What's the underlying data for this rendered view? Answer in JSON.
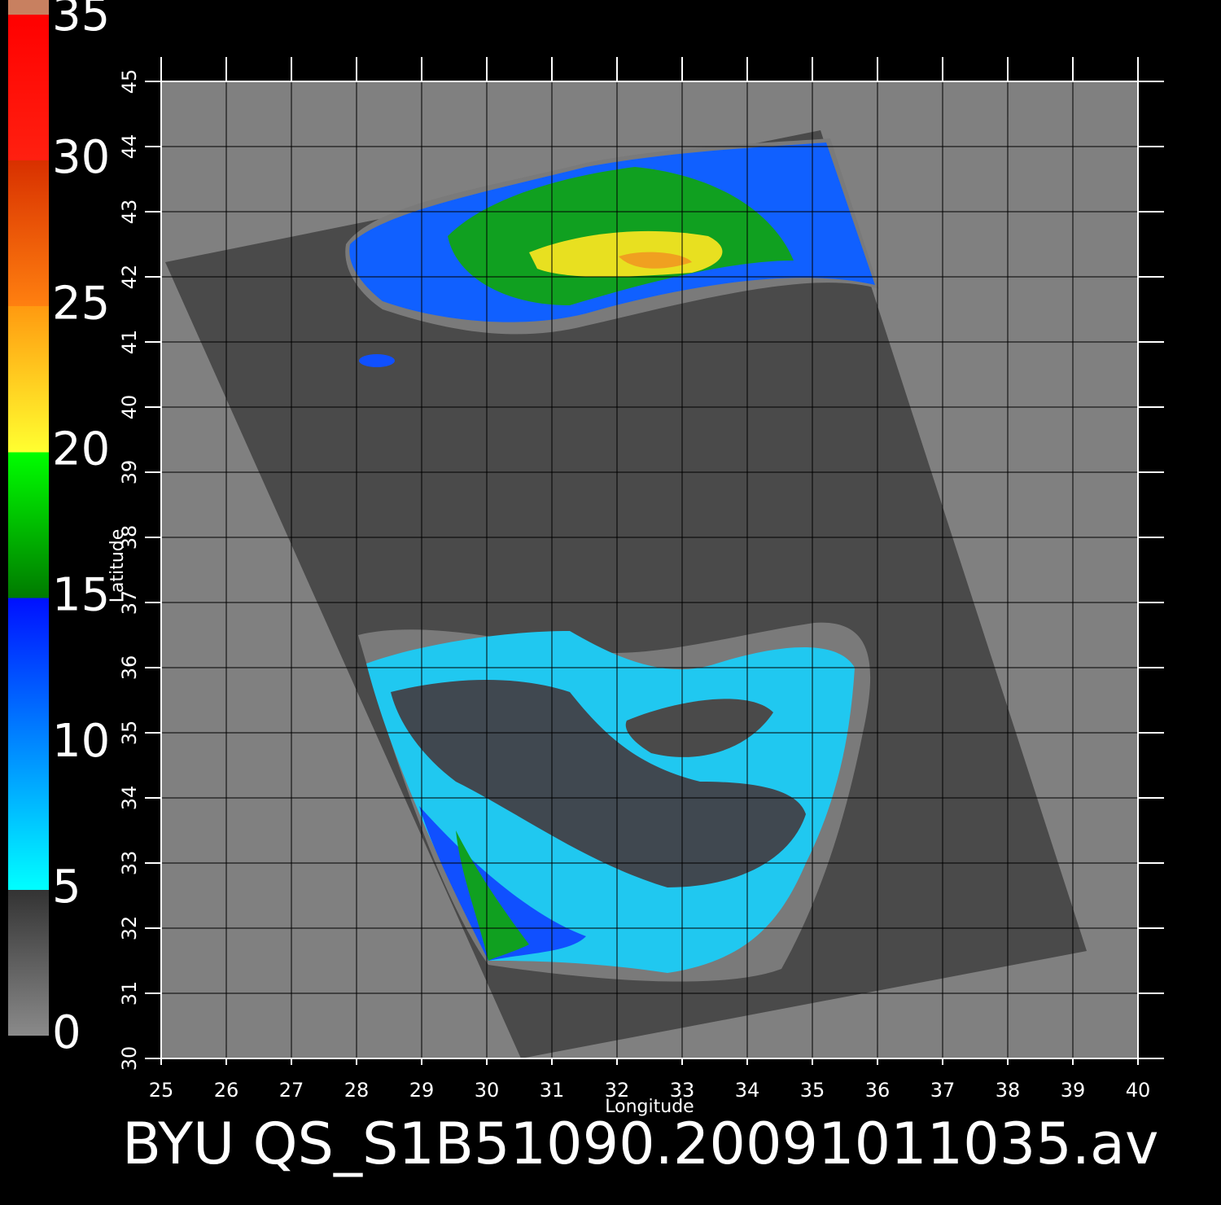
{
  "chart_data": {
    "type": "map",
    "title": "BYU QS_S1B51090.20091011035.av",
    "x_label": "Longitude",
    "y_label": "Latitude",
    "xlim": [
      25,
      40
    ],
    "xticks": [
      25,
      26,
      27,
      28,
      29,
      30,
      31,
      32,
      33,
      34,
      35,
      36,
      37,
      38,
      39,
      40
    ],
    "ylim": [
      30,
      45
    ],
    "yticks": [
      30,
      31,
      32,
      33,
      34,
      35,
      36,
      37,
      38,
      39,
      40,
      41,
      42,
      43,
      44,
      45
    ],
    "grid": true,
    "colorbar": {
      "lim": [
        0,
        35.5
      ],
      "ticks": [
        0,
        5,
        10,
        15,
        20,
        25,
        30,
        35
      ],
      "stops": [
        {
          "value": 0,
          "color": "#8a8a8a"
        },
        {
          "value": 5,
          "color": "#333333"
        },
        {
          "value": 5,
          "color": "#00ffff"
        },
        {
          "value": 15,
          "color": "#0010ff"
        },
        {
          "value": 15,
          "color": "#007a00"
        },
        {
          "value": 20,
          "color": "#00ff00"
        },
        {
          "value": 20,
          "color": "#ffff30"
        },
        {
          "value": 25,
          "color": "#ff9a10"
        },
        {
          "value": 25,
          "color": "#ff8010"
        },
        {
          "value": 30,
          "color": "#d83000"
        },
        {
          "value": 30,
          "color": "#ff2010"
        },
        {
          "value": 35,
          "color": "#ff0000"
        },
        {
          "value": 35,
          "color": "#c88060"
        }
      ]
    }
  }
}
